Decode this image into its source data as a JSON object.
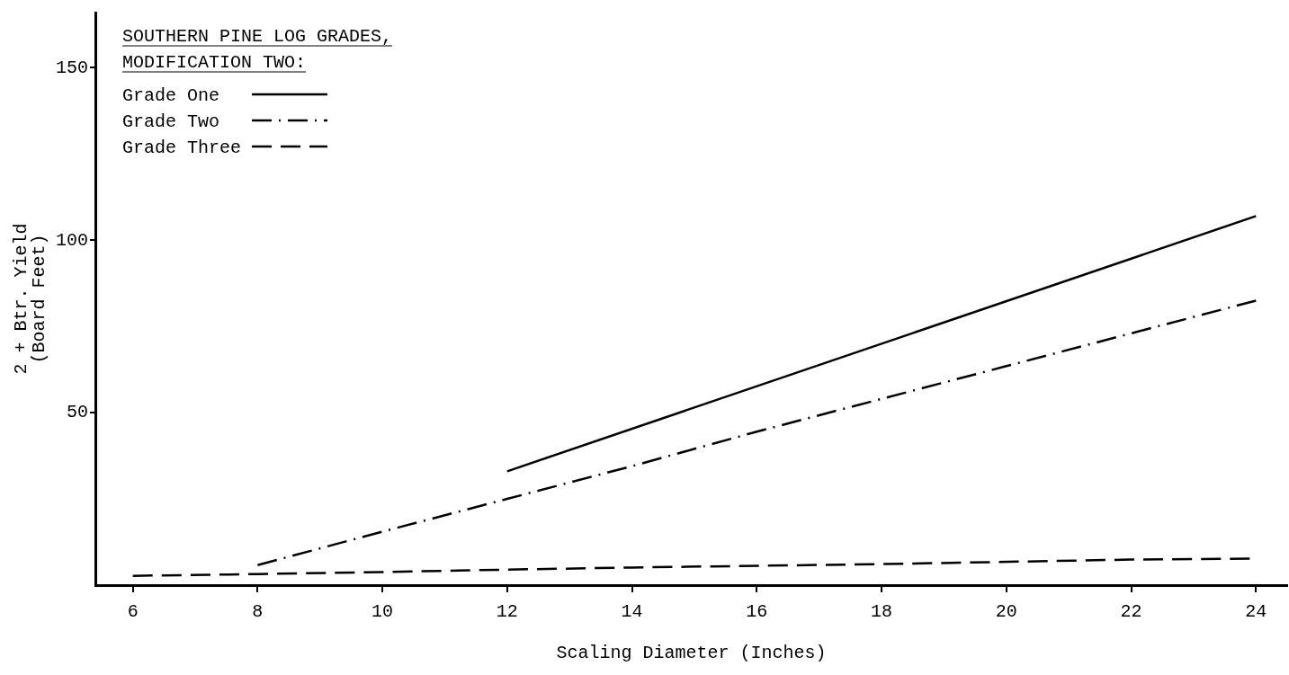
{
  "chart_data": {
    "type": "line",
    "title": "SOUTHERN PINE LOG GRADES,\nMODIFICATION TWO:",
    "xlabel": "Scaling Diameter (Inches)",
    "ylabel": "2 + Btr. Yield\n(Board Feet)",
    "xlim": [
      5.4,
      24.5
    ],
    "xticks": [
      6,
      8,
      10,
      12,
      14,
      16,
      18,
      20,
      22,
      24
    ],
    "ylim": [
      0,
      166
    ],
    "yticks": [
      50,
      100,
      150
    ],
    "grid": false,
    "legend": "top left",
    "marker": "none",
    "series": [
      {
        "name": "Grade One",
        "color": "#000000",
        "line_style": "solid",
        "x": [
          12,
          24
        ],
        "values": [
          33,
          107
        ]
      },
      {
        "name": "Grade Two",
        "color": "#000000",
        "line_style": "dashdot",
        "x": [
          8,
          10,
          12,
          14,
          16,
          18,
          20,
          22,
          24
        ],
        "values": [
          5.8,
          15.5,
          25,
          34.5,
          44.5,
          54,
          63.5,
          73,
          82.5
        ]
      },
      {
        "name": "Grade Three",
        "color": "#000000",
        "line_style": "dashed",
        "x": [
          6,
          8,
          10,
          12,
          14,
          18,
          22,
          23.9
        ],
        "values": [
          2.7,
          3.2,
          3.8,
          4.5,
          5.1,
          6.1,
          7.4,
          7.7
        ]
      }
    ]
  }
}
